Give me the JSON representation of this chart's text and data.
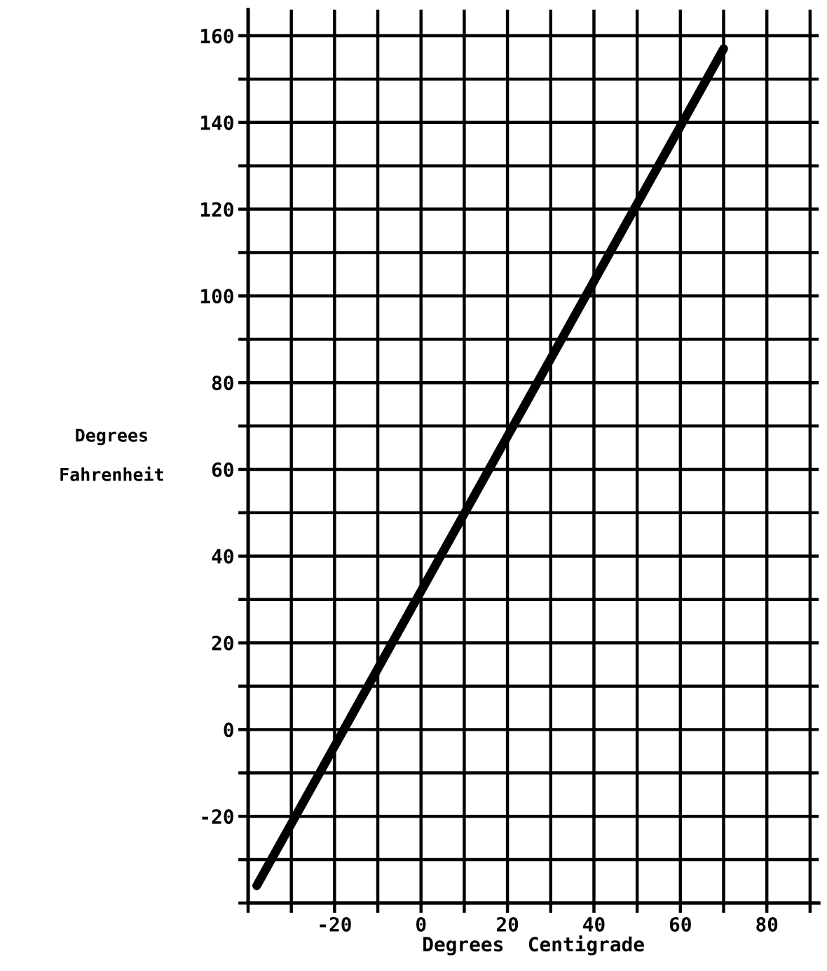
{
  "chart_data": {
    "type": "line",
    "xlabel": "Degrees  Centigrade",
    "ylabel": "Degrees\n\nFahrenheit",
    "x": [
      -38,
      70
    ],
    "series": [
      {
        "color": "#000000",
        "values": [
          -36,
          157
        ]
      }
    ],
    "xlim": [
      -40,
      92
    ],
    "ylim": [
      -40,
      166
    ],
    "xticks": [
      {
        "value": -40,
        "label": null
      },
      {
        "value": -30,
        "label": null
      },
      -20,
      {
        "value": -10,
        "label": null
      },
      0,
      {
        "value": 10,
        "label": null
      },
      20,
      {
        "value": 30,
        "label": null
      },
      40,
      {
        "value": 50,
        "label": null
      },
      60,
      {
        "value": 70,
        "label": null
      },
      80,
      {
        "value": 90,
        "label": null
      }
    ],
    "yticks": [
      {
        "value": -40,
        "label": null
      },
      {
        "value": -30,
        "label": null
      },
      -20,
      {
        "value": -10,
        "label": null
      },
      0,
      {
        "value": 10,
        "label": null
      },
      20,
      {
        "value": 30,
        "label": null
      },
      40,
      {
        "value": 50,
        "label": null
      },
      60,
      {
        "value": 70,
        "label": null
      },
      80,
      {
        "value": 90,
        "label": null
      },
      100,
      {
        "value": 110,
        "label": null
      },
      120,
      {
        "value": 130,
        "label": null
      },
      140,
      {
        "value": 150,
        "label": null
      },
      160
    ],
    "grid": true,
    "marker": "none",
    "line_style": "solid",
    "legend": false
  }
}
